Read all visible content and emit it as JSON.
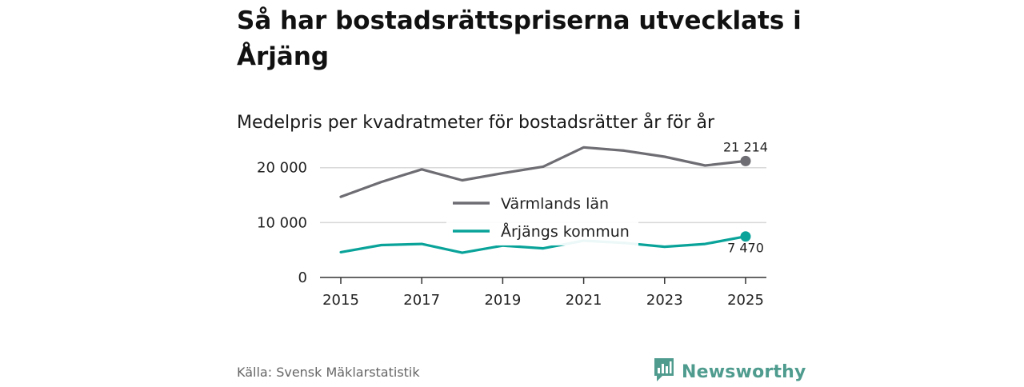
{
  "title": "Så har bostadsrättspriserna utvecklats i Årjäng",
  "subtitle": "Medelpris per kvadratmeter för bostadsrätter år för år",
  "source": "Källa: Svensk Mäklarstatistik",
  "brand": {
    "name": "Newsworthy",
    "icon": "newsworthy-logo-icon",
    "color": "#4f9c8f"
  },
  "chart_data": {
    "type": "line",
    "title": "Medelpris per kvadratmeter för bostadsrätter år för år",
    "xlabel": "",
    "ylabel": "",
    "x": [
      2015,
      2016,
      2017,
      2018,
      2019,
      2020,
      2021,
      2022,
      2023,
      2024,
      2025
    ],
    "xticks": [
      "2015",
      "2017",
      "2019",
      "2021",
      "2023",
      "2025"
    ],
    "yticks": [
      {
        "value": 0,
        "label": "0"
      },
      {
        "value": 10000,
        "label": "10 000"
      },
      {
        "value": 20000,
        "label": "20 000"
      }
    ],
    "ylim": [
      0,
      22000
    ],
    "grid": true,
    "legend": "center",
    "series": [
      {
        "name": "Värmlands län",
        "color": "#6d6d73",
        "values": [
          14700,
          17400,
          19700,
          17700,
          19000,
          20200,
          23700,
          23100,
          22000,
          20400,
          21214
        ],
        "end_label": "21 214"
      },
      {
        "name": "Årjängs kommun",
        "color": "#0aa39a",
        "values": [
          4600,
          5900,
          6100,
          4500,
          5800,
          5300,
          6700,
          6300,
          5600,
          6100,
          7470
        ],
        "end_label": "7 470"
      }
    ]
  }
}
